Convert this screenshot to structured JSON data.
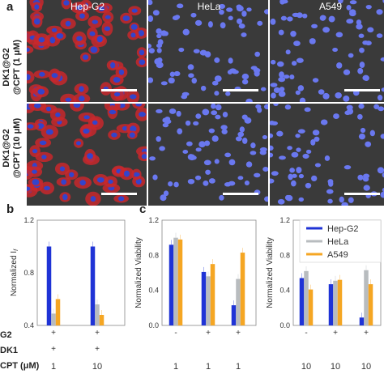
{
  "figure": {
    "panel_a": "a",
    "panel_b": "b",
    "panel_c": "c",
    "columns": [
      "Hep-G2",
      "HeLa",
      "A549"
    ],
    "rows": [
      {
        "line1": "DK1@G2",
        "line2": "@CPT (1 μM)"
      },
      {
        "line1": "DK1@G2",
        "line2": "@CPT (10 μM)"
      }
    ],
    "row_labels_bottom": [
      "G2",
      "DK1",
      "CPT (μM)"
    ],
    "colors": {
      "hepg2": "#1f33d6",
      "hela": "#b8bcbf",
      "a549": "#f5a623",
      "membrane": "#c8282d",
      "nuclei": "#3b4fe0"
    }
  },
  "chart_data": [
    {
      "type": "bar",
      "panel": "b",
      "ylabel": "Normalized I_f",
      "ylim": [
        0.4,
        1.2
      ],
      "yticks": [
        "0.4",
        "0.8",
        "1.2"
      ],
      "groups": [
        {
          "g2": "+",
          "dk1": "+",
          "cpt": "1",
          "values": [
            1.0,
            0.49,
            0.6
          ]
        },
        {
          "g2": "+",
          "dk1": "+",
          "cpt": "10",
          "values": [
            1.0,
            0.56,
            0.48
          ]
        }
      ]
    },
    {
      "type": "bar",
      "panel": "c-left",
      "ylabel": "Normalized Viability",
      "ylim": [
        0.0,
        1.2
      ],
      "yticks": [
        "0.0",
        "0.4",
        "0.8",
        "1.2"
      ],
      "groups": [
        {
          "g2": "-",
          "cpt": "1",
          "values": [
            0.92,
            1.0,
            0.98
          ]
        },
        {
          "g2": "+",
          "cpt": "1",
          "values": [
            0.61,
            0.56,
            0.7
          ]
        },
        {
          "g2": "+",
          "cpt": "1",
          "values": [
            0.23,
            0.53,
            0.83
          ]
        }
      ]
    },
    {
      "type": "bar",
      "panel": "c-right",
      "ylabel": "Normalized Viability",
      "ylim": [
        0.0,
        1.2
      ],
      "yticks": [
        "0.0",
        "0.4",
        "0.8",
        "1.2"
      ],
      "legend": [
        "Hep-G2",
        "HeLa",
        "A549"
      ],
      "legend_position": "top-right",
      "groups": [
        {
          "g2": "-",
          "cpt": "10",
          "values": [
            0.54,
            0.62,
            0.41
          ]
        },
        {
          "g2": "+",
          "cpt": "10",
          "values": [
            0.47,
            0.51,
            0.52
          ]
        },
        {
          "g2": "+",
          "cpt": "10",
          "values": [
            0.09,
            0.63,
            0.47
          ]
        }
      ]
    }
  ]
}
